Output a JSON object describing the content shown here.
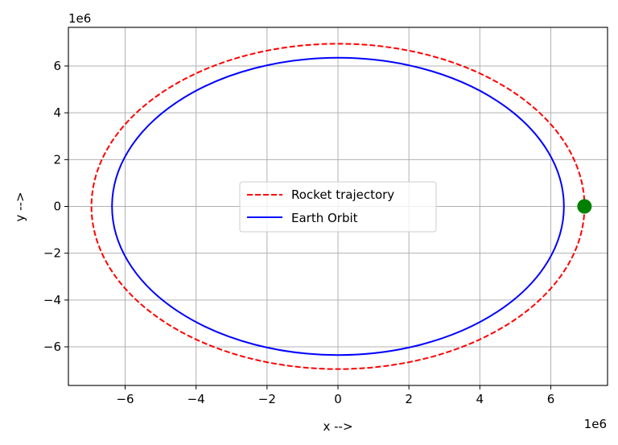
{
  "chart_data": {
    "type": "line",
    "title": "",
    "xlabel": "x -->",
    "ylabel": "y -->",
    "x_offset_text": "1e6",
    "y_offset_text": "1e6",
    "xlim": [
      -7.6,
      7.6
    ],
    "ylim": [
      -7.65,
      7.65
    ],
    "x_ticks": [
      -6,
      -4,
      -2,
      0,
      2,
      4,
      6
    ],
    "y_ticks": [
      -6,
      -4,
      -2,
      0,
      2,
      4,
      6
    ],
    "x_tick_labels": [
      "−6",
      "−4",
      "−2",
      "0",
      "2",
      "4",
      "6"
    ],
    "y_tick_labels": [
      "−6",
      "−4",
      "−2",
      "0",
      "2",
      "4",
      "6"
    ],
    "grid": true,
    "legend_position": "center",
    "series": [
      {
        "name": "Rocket trajectory",
        "shape": "ellipse",
        "center": [
          0,
          0
        ],
        "semi_x": 6.95,
        "semi_y": 6.95,
        "color": "#ff0000",
        "style": "dashed"
      },
      {
        "name": "Earth Orbit",
        "shape": "ellipse",
        "center": [
          0,
          0
        ],
        "semi_x": 6.37,
        "semi_y": 6.35,
        "color": "#0000ff",
        "style": "solid"
      }
    ],
    "markers": [
      {
        "name": "rocket-position",
        "x": 6.95,
        "y": 0,
        "color": "#008000"
      }
    ]
  }
}
